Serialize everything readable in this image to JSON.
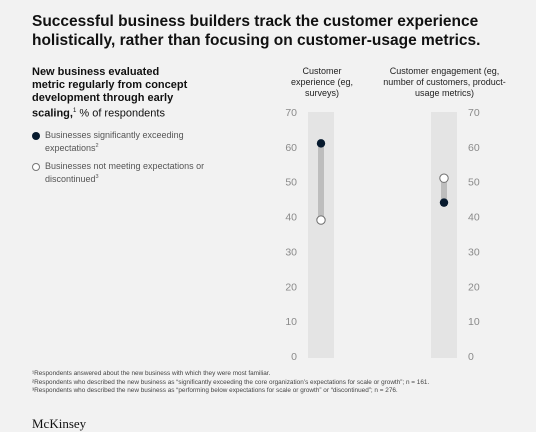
{
  "title": "Successful business builders track the customer experience holistically, rather than focusing on customer-usage metrics.",
  "subtitle": {
    "bold": "New business evaluated metric regularly from concept development through early scaling,",
    "sup": "1",
    "rest": " % of respondents"
  },
  "legend": [
    {
      "label": "Businesses significantly exceeding expectations",
      "sup": "2",
      "style": "filled"
    },
    {
      "label": "Businesses not meeting expectations or discontinued",
      "sup": "3",
      "style": "open"
    }
  ],
  "columns": [
    {
      "header": "Customer experience (eg, surveys)"
    },
    {
      "header": "Customer engagement (eg, number of customers, product-usage metrics)"
    }
  ],
  "chart_data": {
    "type": "dumbbell",
    "ylim": [
      0,
      70
    ],
    "yticks": [
      0,
      10,
      20,
      30,
      40,
      50,
      60,
      70
    ],
    "categories": [
      "Customer experience (eg, surveys)",
      "Customer engagement (eg, number of customers, product-usage metrics)"
    ],
    "series": [
      {
        "name": "Businesses significantly exceeding expectations",
        "values": [
          61,
          44
        ]
      },
      {
        "name": "Businesses not meeting expectations or discontinued",
        "values": [
          39,
          51
        ]
      }
    ],
    "colors": {
      "filled": "#071a2e",
      "open": "#ffffff",
      "track": "#e4e4e4",
      "connector": "#bdbdbd",
      "axis_text": "#8a8a8a"
    }
  },
  "footnotes": [
    "¹Respondents answered about the new business with which they were most familiar.",
    "²Respondents who described the new business as “significantly exceeding the core organization’s expectations for scale or growth”; n = 161.",
    "³Respondents who described the new business as “performing below expectations for scale or growth” or “discontinued”; n = 276."
  ],
  "logo": "McKinsey"
}
